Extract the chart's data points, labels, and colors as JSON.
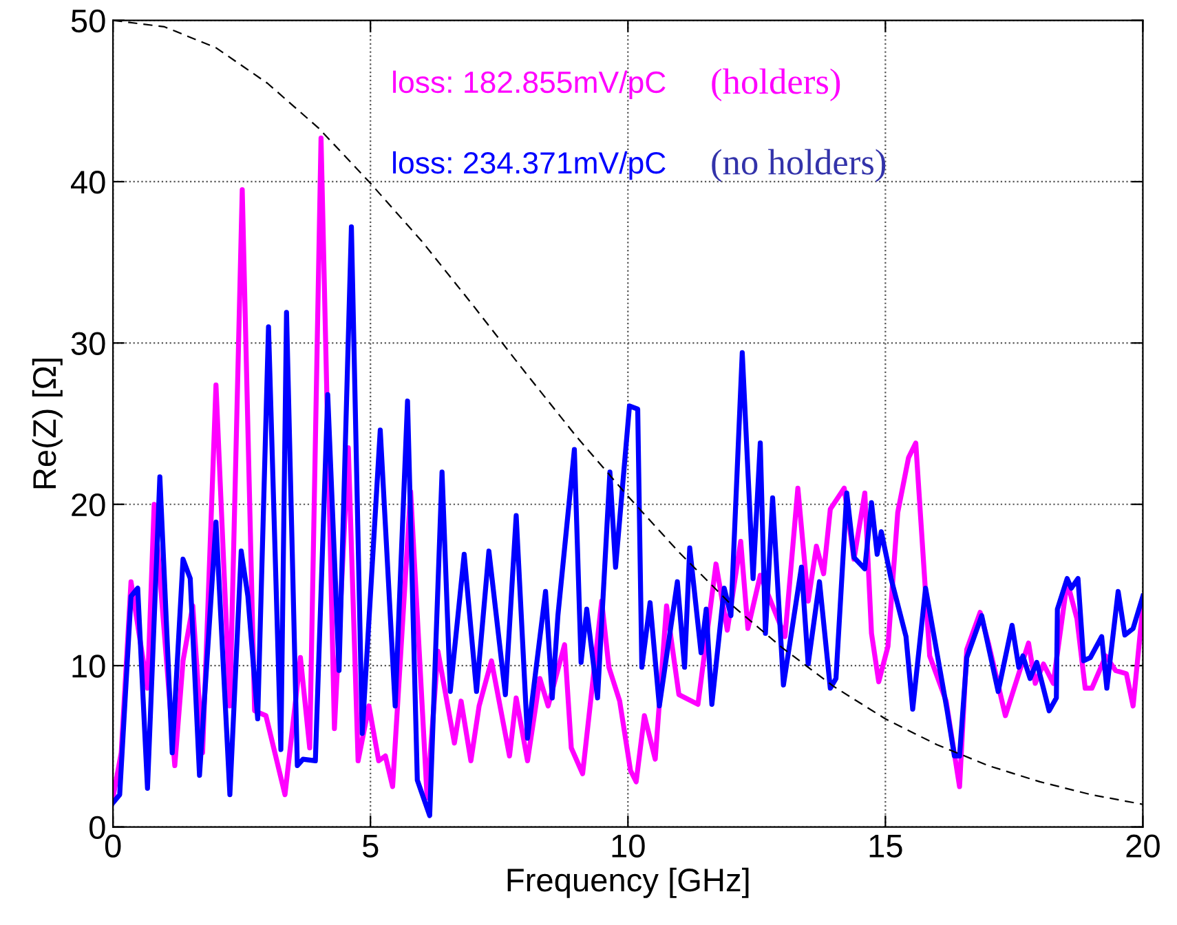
{
  "chart_data": {
    "type": "line",
    "xlabel": "Frequency [GHz]",
    "ylabel": "Re(Z) [Ω]",
    "xlim": [
      0,
      20
    ],
    "ylim": [
      0,
      50
    ],
    "xticks": [
      0,
      5,
      10,
      15,
      20
    ],
    "yticks": [
      0,
      10,
      20,
      30,
      40,
      50
    ],
    "grid": true,
    "legend": false,
    "annotations": [
      "loss: 182.855mV/pC",
      "(holders)",
      "loss: 234.371mV/pC",
      "(no holders)"
    ],
    "series": [
      {
        "color": "#ff00ff",
        "x": [
          0.0,
          0.16,
          0.35,
          0.67,
          0.8,
          1.2,
          1.36,
          1.55,
          1.74,
          2.0,
          2.27,
          2.51,
          2.75,
          2.97,
          3.34,
          3.64,
          3.82,
          4.04,
          4.3,
          4.57,
          4.76,
          4.97,
          5.16,
          5.29,
          5.43,
          5.78,
          6.1,
          6.31,
          6.63,
          6.76,
          6.95,
          7.11,
          7.35,
          7.7,
          7.83,
          8.05,
          8.29,
          8.45,
          8.77,
          8.9,
          9.12,
          9.49,
          9.63,
          9.84,
          10.05,
          10.16,
          10.32,
          10.53,
          10.75,
          10.99,
          11.36,
          11.71,
          11.93,
          12.19,
          12.33,
          12.57,
          13.05,
          13.3,
          13.5,
          13.66,
          13.8,
          13.93,
          14.2,
          14.39,
          14.6,
          14.73,
          14.87,
          15.05,
          15.24,
          15.45,
          15.59,
          15.86,
          16.18,
          16.44,
          16.58,
          16.84,
          17.0,
          17.33,
          17.78,
          17.91,
          18.07,
          18.26,
          18.53,
          18.72,
          18.88,
          19.01,
          19.28,
          19.47,
          19.68,
          19.81,
          20.0
        ],
        "values": [
          1.8,
          4.6,
          15.2,
          8.6,
          20,
          3.8,
          10.3,
          13.7,
          4.6,
          27.4,
          7.5,
          39.5,
          7.2,
          6.9,
          2.0,
          10.5,
          4.9,
          42.7,
          6.1,
          23.5,
          4.1,
          7.5,
          4.1,
          4.4,
          2.5,
          20.8,
          1.8,
          10.9,
          5.2,
          7.8,
          4.1,
          7.5,
          10.3,
          4.4,
          8.0,
          4.1,
          9.2,
          7.5,
          11.3,
          4.9,
          3.3,
          14.0,
          9.9,
          7.8,
          3.5,
          2.8,
          6.9,
          4.2,
          13.7,
          8.2,
          7.6,
          16.3,
          12.2,
          17.7,
          12.3,
          15.6,
          11.8,
          21.0,
          14.0,
          17.4,
          15.7,
          19.7,
          21.0,
          16.6,
          20.7,
          12.0,
          9.0,
          11.2,
          19.5,
          22.9,
          23.8,
          10.6,
          7.8,
          2.5,
          11.0,
          13.3,
          11.4,
          6.9,
          11.4,
          8.9,
          10.1,
          8.9,
          15.2,
          12.9,
          8.6,
          8.6,
          10.6,
          9.7,
          9.5,
          7.5,
          13.7
        ]
      },
      {
        "color": "#0000ff",
        "x": [
          0.0,
          0.13,
          0.35,
          0.48,
          0.67,
          0.91,
          1.15,
          1.36,
          1.5,
          1.68,
          2.0,
          2.27,
          2.49,
          2.62,
          2.81,
          3.02,
          3.26,
          3.37,
          3.58,
          3.69,
          3.93,
          4.17,
          4.39,
          4.63,
          4.84,
          5.19,
          5.48,
          5.72,
          5.91,
          6.15,
          6.39,
          6.55,
          6.82,
          7.06,
          7.3,
          7.62,
          7.83,
          8.05,
          8.4,
          8.53,
          8.64,
          8.96,
          9.09,
          9.2,
          9.41,
          9.65,
          9.76,
          10.03,
          10.19,
          10.27,
          10.43,
          10.61,
          10.96,
          11.1,
          11.2,
          11.42,
          11.52,
          11.63,
          11.87,
          12.0,
          12.22,
          12.43,
          12.57,
          12.67,
          12.81,
          13.02,
          13.37,
          13.5,
          13.72,
          13.93,
          14.04,
          14.25,
          14.39,
          14.6,
          14.73,
          14.84,
          14.92,
          15.11,
          15.4,
          15.53,
          15.78,
          16.04,
          16.2,
          16.34,
          16.44,
          16.58,
          16.87,
          17.19,
          17.46,
          17.59,
          17.67,
          17.81,
          17.94,
          18.18,
          18.32,
          18.34,
          18.53,
          18.61,
          18.74,
          18.85,
          18.98,
          19.2,
          19.3,
          19.52,
          19.65,
          19.81,
          20.0
        ],
        "values": [
          1.5,
          2.0,
          14.3,
          14.8,
          2.4,
          21.7,
          4.6,
          16.6,
          15.4,
          3.2,
          18.9,
          2.0,
          17.1,
          14.3,
          6.7,
          31.0,
          4.8,
          31.9,
          3.8,
          4.2,
          4.1,
          26.8,
          9.7,
          37.2,
          5.8,
          24.6,
          7.5,
          26.4,
          2.9,
          0.7,
          22.0,
          8.4,
          16.9,
          8.4,
          17.1,
          8.2,
          19.3,
          5.5,
          14.6,
          8.0,
          13.1,
          23.4,
          10.2,
          13.5,
          8.0,
          22.0,
          16.1,
          26.1,
          25.9,
          9.9,
          13.9,
          7.5,
          15.2,
          9.9,
          17.3,
          10.8,
          13.5,
          7.6,
          14.8,
          13.1,
          29.4,
          15.4,
          23.8,
          12.0,
          20.4,
          8.8,
          16.1,
          10.1,
          15.2,
          8.6,
          9.2,
          20.7,
          16.7,
          16.0,
          20.1,
          16.9,
          18.3,
          15.4,
          11.8,
          7.3,
          14.8,
          10.1,
          7.2,
          4.4,
          4.4,
          10.5,
          13.1,
          8.4,
          12.5,
          9.9,
          10.6,
          9.2,
          10.2,
          7.2,
          8.0,
          13.5,
          15.4,
          14.8,
          15.4,
          10.3,
          10.5,
          11.8,
          8.6,
          14.6,
          11.9,
          12.3,
          14.3
        ]
      },
      {
        "color": "#000000",
        "line_style": "dashed",
        "x": [
          0,
          1,
          2,
          3,
          4,
          5,
          6,
          7,
          8,
          9,
          10,
          11,
          12,
          13,
          14,
          15,
          16,
          17,
          18,
          19,
          20
        ],
        "values": [
          50,
          49.6,
          48.3,
          46.1,
          43.3,
          39.9,
          36.3,
          32.3,
          28.2,
          24.2,
          20.5,
          17.0,
          13.8,
          11.1,
          8.7,
          6.7,
          5.1,
          3.8,
          2.8,
          2.0,
          1.4
        ]
      }
    ]
  }
}
